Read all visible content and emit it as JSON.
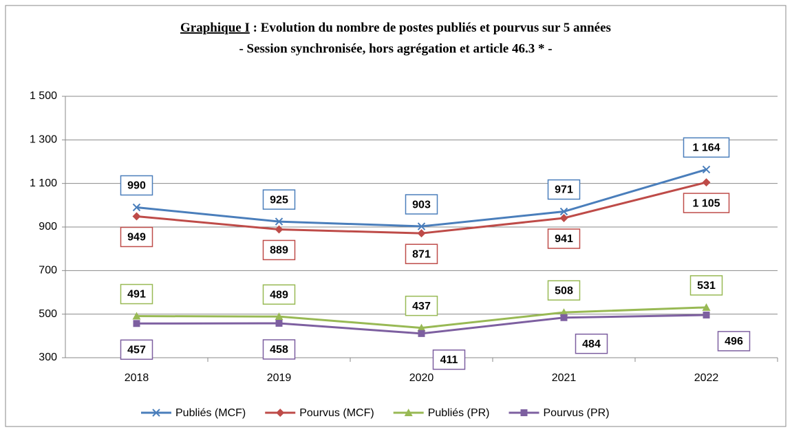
{
  "chart_data": {
    "type": "line",
    "title_label": "Graphique I",
    "title": " : Evolution du nombre de postes publiés et pourvus sur 5 années",
    "subtitle": "- Session synchronisée, hors agrégation et article 46.3 *  -",
    "categories": [
      "2018",
      "2019",
      "2020",
      "2021",
      "2022"
    ],
    "series": [
      {
        "name": "Publiés (MCF)",
        "color": "#4a7ebb",
        "marker": "x",
        "values": [
          990,
          925,
          903,
          971,
          1164
        ],
        "value_labels": [
          "990",
          "925",
          "903",
          "971",
          "1 164"
        ]
      },
      {
        "name": "Pourvus (MCF)",
        "color": "#be4b48",
        "marker": "diamond",
        "values": [
          949,
          889,
          871,
          941,
          1105
        ],
        "value_labels": [
          "949",
          "889",
          "871",
          "941",
          "1 105"
        ]
      },
      {
        "name": "Publiés (PR)",
        "color": "#98b954",
        "marker": "triangle",
        "values": [
          491,
          489,
          437,
          508,
          531
        ]
      },
      {
        "name": "Pourvus (PR)",
        "color": "#7d5fa0",
        "marker": "square",
        "values": [
          457,
          458,
          411,
          484,
          496
        ]
      }
    ],
    "ylim": [
      300,
      1500
    ],
    "yticks": [
      300,
      500,
      700,
      900,
      {
        "value": 1100,
        "label": "1 100"
      },
      {
        "value": 1300,
        "label": "1 300"
      },
      {
        "value": 1500,
        "label": "1 500"
      }
    ],
    "grid": true,
    "legend": "bottom"
  }
}
